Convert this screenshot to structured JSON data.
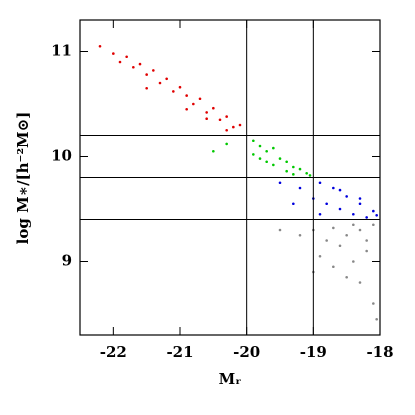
{
  "chart_data": {
    "type": "scatter",
    "x_label": "Mᵣ",
    "y_label": "log M∗/[h⁻²M⊙]",
    "xlim": [
      -22.5,
      -18
    ],
    "ylim": [
      8.3,
      11.3
    ],
    "xticks": [
      -22,
      -21,
      -20,
      -19,
      -18
    ],
    "yticks": [
      9,
      10,
      11
    ],
    "hlines": [
      10.2,
      9.8,
      9.4
    ],
    "vlines": [
      -20,
      -19
    ],
    "series": [
      {
        "color": "#e00000",
        "x": [
          -22.2,
          -22.0,
          -21.9,
          -21.8,
          -21.7,
          -21.6,
          -21.5,
          -21.4,
          -21.3,
          -21.2,
          -21.1,
          -21.0,
          -20.9,
          -20.8,
          -20.7,
          -20.6,
          -20.5,
          -20.4,
          -20.3,
          -20.2,
          -20.1,
          -21.5,
          -20.9,
          -20.6,
          -20.3
        ],
        "y": [
          11.05,
          10.98,
          10.9,
          10.95,
          10.85,
          10.88,
          10.78,
          10.82,
          10.7,
          10.74,
          10.62,
          10.66,
          10.58,
          10.5,
          10.55,
          10.42,
          10.46,
          10.35,
          10.38,
          10.28,
          10.3,
          10.65,
          10.45,
          10.36,
          10.25
        ]
      },
      {
        "color": "#00c800",
        "x": [
          -19.9,
          -19.8,
          -19.7,
          -19.6,
          -19.5,
          -19.4,
          -19.3,
          -19.2,
          -19.1,
          -19.05,
          -19.8,
          -19.6,
          -19.4,
          -19.9,
          -19.7,
          -19.3,
          -20.3,
          -20.5
        ],
        "y": [
          10.15,
          10.1,
          10.05,
          10.08,
          9.98,
          9.95,
          9.9,
          9.88,
          9.84,
          9.82,
          9.98,
          9.92,
          9.86,
          10.02,
          9.95,
          9.83,
          10.12,
          10.05
        ]
      },
      {
        "color": "#0000dd",
        "x": [
          -18.9,
          -18.7,
          -18.5,
          -18.3,
          -18.1,
          -19.0,
          -18.8,
          -18.6,
          -18.4,
          -19.2,
          -18.9,
          -18.2,
          -19.5,
          -18.6,
          -18.3,
          -18.05,
          -19.3
        ],
        "y": [
          9.75,
          9.7,
          9.62,
          9.55,
          9.48,
          9.6,
          9.55,
          9.5,
          9.45,
          9.7,
          9.45,
          9.42,
          9.75,
          9.68,
          9.6,
          9.44,
          9.55
        ]
      },
      {
        "color": "#888888",
        "x": [
          -18.1,
          -18.3,
          -18.5,
          -18.2,
          -18.4,
          -18.6,
          -18.8,
          -19.0,
          -18.9,
          -18.7,
          -18.3,
          -18.1,
          -18.05,
          -18.5,
          -19.2,
          -19.5,
          -19.0,
          -18.2,
          -18.4,
          -18.7
        ],
        "y": [
          9.35,
          9.3,
          9.25,
          9.1,
          9.0,
          9.15,
          9.2,
          9.3,
          9.05,
          8.95,
          8.8,
          8.6,
          8.45,
          8.85,
          9.25,
          9.3,
          8.9,
          9.2,
          9.35,
          9.32
        ]
      }
    ]
  }
}
